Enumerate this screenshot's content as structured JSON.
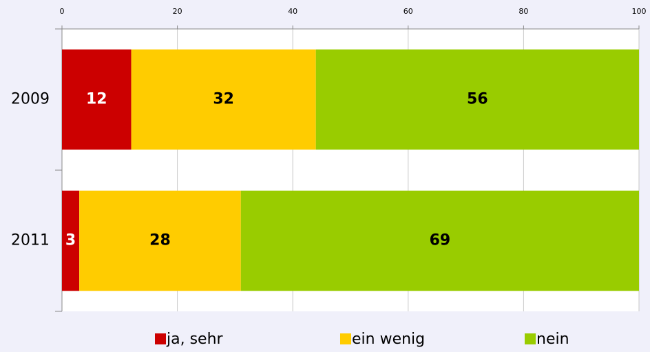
{
  "chart_data": {
    "type": "stacked-barh",
    "categories": [
      "2009",
      "2011"
    ],
    "series": [
      {
        "name": "ja, sehr",
        "color": "#cc0000",
        "values": [
          12,
          3
        ]
      },
      {
        "name": "ein wenig",
        "color": "#ffcc00",
        "values": [
          32,
          28
        ]
      },
      {
        "name": "nein",
        "color": "#99cc00",
        "values": [
          56,
          69
        ]
      }
    ],
    "xlim": [
      0,
      100
    ],
    "xticks": [
      0,
      20,
      40,
      60,
      80,
      100
    ],
    "grid": true,
    "legend": "bottom"
  }
}
